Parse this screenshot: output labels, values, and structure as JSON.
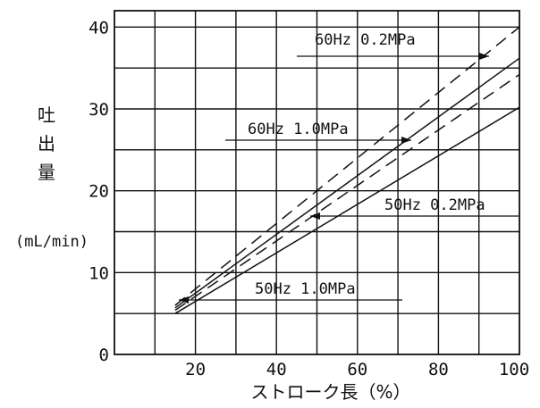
{
  "chart_data": {
    "type": "line",
    "title": "",
    "ylabel": "吐出量",
    "ylabel_unit": "(mL/min)",
    "xlabel": "ストローク長（%）",
    "x_ticks": [
      "20",
      "40",
      "60",
      "80",
      "100"
    ],
    "y_ticks": [
      "0",
      "10",
      "20",
      "30",
      "40"
    ],
    "xlim": [
      0,
      100
    ],
    "ylim": [
      0,
      42
    ],
    "grid": true,
    "series": [
      {
        "name": "60Hz 0.2MPa",
        "style": "dashed",
        "x": [
          15,
          100
        ],
        "y": [
          6.0,
          40.0
        ]
      },
      {
        "name": "60Hz 1.0MPa",
        "style": "solid",
        "x": [
          15,
          100
        ],
        "y": [
          5.7,
          36.2
        ]
      },
      {
        "name": "50Hz 0.2MPa",
        "style": "dashed",
        "x": [
          15,
          100
        ],
        "y": [
          5.4,
          34.2
        ]
      },
      {
        "name": "50Hz 1.0MPa",
        "style": "solid",
        "x": [
          15,
          100
        ],
        "y": [
          5.0,
          30.2
        ]
      }
    ],
    "annotations": [
      {
        "text": "60Hz 0.2MPa",
        "series": "60Hz 0.2MPa"
      },
      {
        "text": "60Hz 1.0MPa",
        "series": "60Hz 1.0MPa"
      },
      {
        "text": "50Hz 0.2MPa",
        "series": "50Hz 0.2MPa"
      },
      {
        "text": "50Hz 1.0MPa",
        "series": "50Hz 1.0MPa"
      }
    ]
  }
}
